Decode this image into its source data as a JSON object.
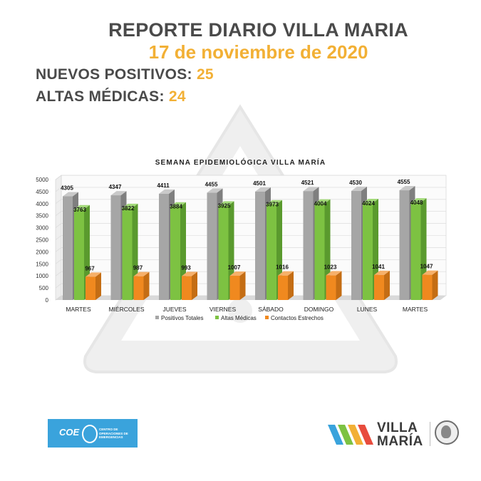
{
  "header": {
    "title": "REPORTE DIARIO VILLA MARIA",
    "date": "17 de noviembre de 2020"
  },
  "stats": {
    "nuevos_label": "NUEVOS POSITIVOS:",
    "nuevos_value": "25",
    "altas_label": "ALTAS MÉDICAS:",
    "altas_value": "24"
  },
  "colors": {
    "title": "#4a4a4a",
    "accent": "#f2b035",
    "positivos": "#a6a6a6",
    "altas": "#7dc242",
    "contactos": "#f0891f"
  },
  "chart_data": {
    "type": "bar",
    "title": "SEMANA EPIDEMIOLÓGICA VILLA MARÍA",
    "categories": [
      "MARTES",
      "MIÉRCOLES",
      "JUEVES",
      "VIERNES",
      "SÁBADO",
      "DOMINGO",
      "LUNES",
      "MARTES"
    ],
    "series": [
      {
        "name": "Positivos Totales",
        "values": [
          4305,
          4347,
          4411,
          4455,
          4501,
          4521,
          4530,
          4555
        ]
      },
      {
        "name": "Altas Médicas",
        "values": [
          3763,
          3822,
          3884,
          3925,
          3973,
          4004,
          4024,
          4048
        ]
      },
      {
        "name": "Contactos Estrechos",
        "values": [
          967,
          987,
          993,
          1007,
          1016,
          1023,
          1041,
          1047
        ]
      }
    ],
    "ylim": [
      0,
      5000
    ],
    "yticks": [
      0,
      500,
      1000,
      1500,
      2000,
      2500,
      3000,
      3500,
      4000,
      4500,
      5000
    ],
    "grid": true,
    "legend": "bottom",
    "style": "3d"
  },
  "footer": {
    "coe_word": "COE",
    "coe_sub": "CENTRO DE OPERACIONES DE EMERGENCIAS",
    "brand_line1": "VILLA",
    "brand_line2": "MARÍA",
    "brand_stripes": [
      "#3aa3dc",
      "#7dc242",
      "#f2b035",
      "#e84c3d"
    ]
  }
}
